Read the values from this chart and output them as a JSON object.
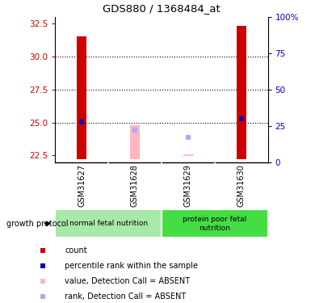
{
  "title": "GDS880 / 1368484_at",
  "samples": [
    "GSM31627",
    "GSM31628",
    "GSM31629",
    "GSM31630"
  ],
  "ylim_left": [
    22.0,
    33.0
  ],
  "ylim_right": [
    0,
    100
  ],
  "left_ticks": [
    22.5,
    25.0,
    27.5,
    30.0,
    32.5
  ],
  "right_ticks": [
    0,
    25,
    50,
    75,
    100
  ],
  "red_bar_bottoms": [
    22.2,
    22.2,
    22.2,
    22.2
  ],
  "red_bar_tops": [
    31.5,
    22.2,
    22.2,
    32.3
  ],
  "blue_marker_values": [
    25.05,
    null,
    null,
    25.25
  ],
  "pink_bar_bottoms": [
    null,
    22.2,
    22.45,
    null
  ],
  "pink_bar_tops": [
    null,
    24.8,
    22.58,
    null
  ],
  "lavender_marker_values": [
    null,
    24.42,
    23.85,
    null
  ],
  "red_color": "#CC0000",
  "blue_color": "#0000CC",
  "pink_color": "#FFB6C1",
  "lavender_color": "#AAAAFF",
  "bg_label": "#C8C8C8",
  "left_tick_color": "#CC0000",
  "right_tick_color": "#0000CC",
  "group1_color": "#A8E8A8",
  "group2_color": "#44DD44",
  "group1_label": "normal fetal nutrition",
  "group2_label": "protein poor fetal\nnutrition"
}
